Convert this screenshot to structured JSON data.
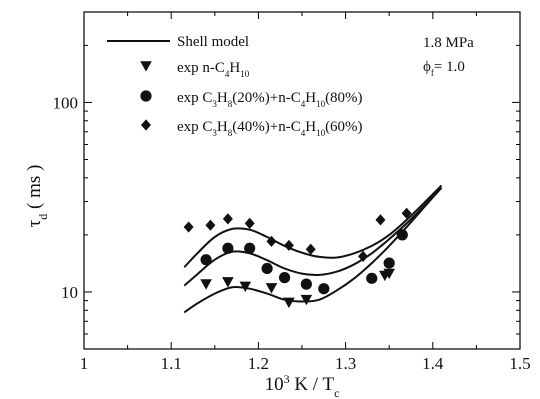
{
  "chart_data": {
    "type": "scatter",
    "title": "",
    "xlabel": {
      "prefix": "10",
      "exp": "3",
      "suffix": " K / T",
      "sub": "c"
    },
    "ylabel": {
      "main": "τ",
      "sub": "d",
      "suffix": " ( ms )"
    },
    "xlim": [
      1.0,
      1.5
    ],
    "ylim": [
      5,
      300
    ],
    "yscale": "log",
    "grid": false,
    "legend_position": "top-left",
    "x_ticks": [
      1.0,
      1.1,
      1.2,
      1.3,
      1.4,
      1.5
    ],
    "x_tick_labels": [
      "1",
      "1.1",
      "1.2",
      "1.3",
      "1.4",
      "1.5"
    ],
    "y_ticks": [
      10,
      100
    ],
    "y_tick_labels": [
      "10",
      "100"
    ],
    "annotations": [
      {
        "parts": [
          {
            "t": "1.8 MPa"
          }
        ]
      },
      {
        "parts": [
          {
            "t": "ϕ"
          },
          {
            "t": "f",
            "sub": true
          },
          {
            "t": "= 1.0"
          }
        ]
      }
    ],
    "legend": [
      {
        "marker": "line",
        "parts": [
          {
            "t": "Shell model"
          }
        ]
      },
      {
        "marker": "triangle-down",
        "parts": [
          {
            "t": "exp n-C"
          },
          {
            "t": "4",
            "sub": true
          },
          {
            "t": "H"
          },
          {
            "t": "10",
            "sub": true
          }
        ]
      },
      {
        "marker": "circle",
        "parts": [
          {
            "t": "exp C"
          },
          {
            "t": "3",
            "sub": true
          },
          {
            "t": "H"
          },
          {
            "t": "8",
            "sub": true
          },
          {
            "t": "(20%)+n-C"
          },
          {
            "t": "4",
            "sub": true
          },
          {
            "t": "H"
          },
          {
            "t": "10",
            "sub": true
          },
          {
            "t": "(80%)"
          }
        ]
      },
      {
        "marker": "diamond",
        "parts": [
          {
            "t": "exp C"
          },
          {
            "t": "3",
            "sub": true
          },
          {
            "t": "H"
          },
          {
            "t": "8",
            "sub": true
          },
          {
            "t": "(40%)+n-C"
          },
          {
            "t": "4",
            "sub": true
          },
          {
            "t": "H"
          },
          {
            "t": "10",
            "sub": true
          },
          {
            "t": "(60%)"
          }
        ]
      }
    ],
    "series": [
      {
        "marker": "triangle-down",
        "x": [
          1.14,
          1.165,
          1.185,
          1.215,
          1.235,
          1.255,
          1.345,
          1.35
        ],
        "y": [
          11.0,
          11.3,
          10.7,
          10.5,
          8.8,
          9.1,
          12.2,
          12.5
        ]
      },
      {
        "marker": "circle",
        "x": [
          1.14,
          1.165,
          1.19,
          1.21,
          1.23,
          1.255,
          1.275,
          1.33,
          1.35,
          1.365
        ],
        "y": [
          14.8,
          17.0,
          17.0,
          13.3,
          11.9,
          11.0,
          10.4,
          11.8,
          14.2,
          20.0
        ]
      },
      {
        "marker": "diamond",
        "x": [
          1.12,
          1.145,
          1.165,
          1.19,
          1.215,
          1.235,
          1.26,
          1.32,
          1.34,
          1.37
        ],
        "y": [
          22.0,
          22.5,
          24.3,
          23.0,
          18.5,
          17.6,
          16.8,
          15.4,
          24.0,
          26.0
        ]
      }
    ],
    "model_curves": [
      {
        "x": [
          1.115,
          1.13,
          1.15,
          1.17,
          1.19,
          1.21,
          1.23,
          1.25,
          1.27,
          1.29,
          1.31,
          1.33,
          1.35,
          1.37,
          1.39,
          1.41
        ],
        "y": [
          7.8,
          8.7,
          9.8,
          10.6,
          10.4,
          9.8,
          9.1,
          8.9,
          9.1,
          10.2,
          11.8,
          14.2,
          17.5,
          22.0,
          28.0,
          35.5
        ]
      },
      {
        "x": [
          1.115,
          1.13,
          1.15,
          1.17,
          1.19,
          1.21,
          1.23,
          1.25,
          1.27,
          1.29,
          1.31,
          1.33,
          1.35,
          1.37,
          1.39,
          1.41
        ],
        "y": [
          10.8,
          12.4,
          14.8,
          16.3,
          16.0,
          14.7,
          13.3,
          12.5,
          12.3,
          12.8,
          14.0,
          16.0,
          19.0,
          23.0,
          28.5,
          35.5
        ]
      },
      {
        "x": [
          1.115,
          1.13,
          1.15,
          1.17,
          1.19,
          1.21,
          1.23,
          1.25,
          1.27,
          1.29,
          1.31,
          1.33,
          1.35,
          1.37,
          1.39,
          1.41
        ],
        "y": [
          13.5,
          16.0,
          19.5,
          21.5,
          21.3,
          19.5,
          17.5,
          16.1,
          15.3,
          15.2,
          16.0,
          17.5,
          20.0,
          24.0,
          29.5,
          36.5
        ]
      }
    ]
  }
}
